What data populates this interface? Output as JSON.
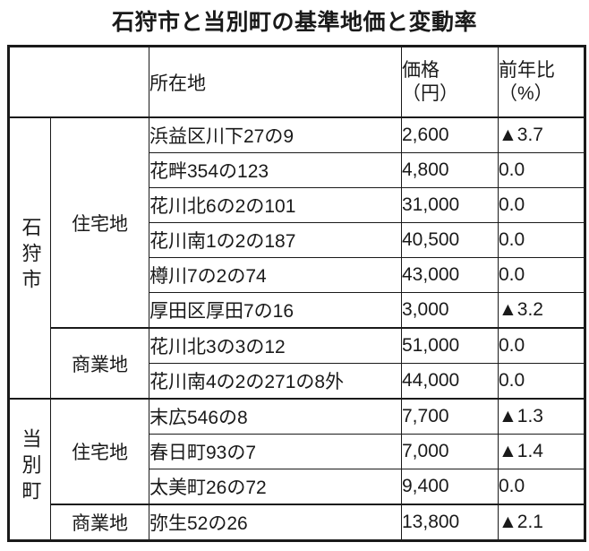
{
  "title": "石狩市と当別町の基準地価と変動率",
  "colors": {
    "text": "#1a1a1a",
    "border": "#1a1a1a",
    "background": "#ffffff",
    "negative_marker": "#1a1a1a"
  },
  "table": {
    "header": {
      "corner": "",
      "location": "所在地",
      "price_line1": "価格",
      "price_line2": "（円）",
      "yoy_line1": "前年比",
      "yoy_line2": "（%）"
    },
    "groups": [
      {
        "city": "石狩市",
        "sections": [
          {
            "type": "住宅地",
            "rows": [
              {
                "location": "浜益区川下27の9",
                "price": "2,600",
                "change": "▲3.7"
              },
              {
                "location": "花畔354の123",
                "price": "4,800",
                "change": "0.0"
              },
              {
                "location": "花川北6の2の101",
                "price": "31,000",
                "change": "0.0"
              },
              {
                "location": "花川南1の2の187",
                "price": "40,500",
                "change": "0.0"
              },
              {
                "location": "樽川7の2の74",
                "price": "43,000",
                "change": "0.0"
              },
              {
                "location": "厚田区厚田7の16",
                "price": "3,000",
                "change": "▲3.2"
              }
            ]
          },
          {
            "type": "商業地",
            "rows": [
              {
                "location": "花川北3の3の12",
                "price": "51,000",
                "change": "0.0"
              },
              {
                "location": "花川南4の2の271の8外",
                "price": "44,000",
                "change": "0.0"
              }
            ]
          }
        ]
      },
      {
        "city": "当別町",
        "sections": [
          {
            "type": "住宅地",
            "rows": [
              {
                "location": "末広546の8",
                "price": "7,700",
                "change": "▲1.3"
              },
              {
                "location": "春日町93の7",
                "price": "7,000",
                "change": "▲1.4"
              },
              {
                "location": "太美町26の72",
                "price": "9,400",
                "change": "0.0"
              }
            ]
          },
          {
            "type": "商業地",
            "rows": [
              {
                "location": "弥生52の26",
                "price": "13,800",
                "change": "▲2.1"
              }
            ]
          }
        ]
      }
    ]
  }
}
